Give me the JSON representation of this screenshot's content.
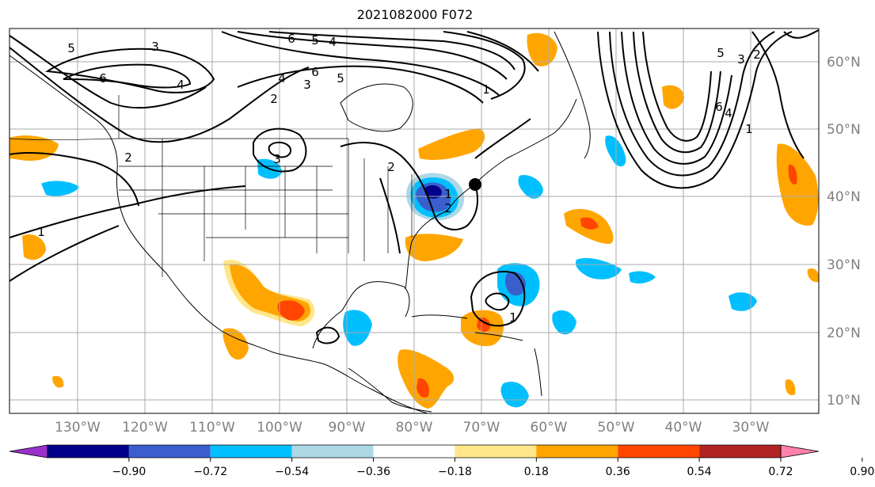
{
  "title": "2021082000 F072",
  "lon_labels": [
    "130°W",
    "120°W",
    "110°W",
    "100°W",
    "90°W",
    "80°W",
    "70°W",
    "60°W",
    "50°W",
    "40°W",
    "30°W"
  ],
  "lat_labels": [
    "60°N",
    "50°N",
    "40°N",
    "30°N",
    "20°N",
    "10°N"
  ],
  "colorbar": {
    "tick_labels": [
      "−0.90",
      "−0.72",
      "−0.54",
      "−0.36",
      "−0.18",
      "0.18",
      "0.36",
      "0.54",
      "0.72",
      "0.90"
    ],
    "colors": [
      "#9932cc",
      "#00008b",
      "#3a5fcd",
      "#00bfff",
      "#add8e6",
      "#ffffff",
      "#ffe68a",
      "#ffa500",
      "#ff4500",
      "#b22222",
      "#ff82ab"
    ]
  },
  "contour_labels": [
    "5",
    "3",
    "6",
    "4",
    "2",
    "1",
    "6",
    "5",
    "4",
    "5",
    "6",
    "4",
    "3",
    "2",
    "1",
    "3",
    "2",
    "1",
    "2",
    "5",
    "3",
    "2",
    "6",
    "4",
    "1",
    "1"
  ],
  "colors": {
    "negative_strong": "#00008b",
    "negative_mid": "#3a5fcd",
    "negative_light": "#00bfff",
    "negative_faint": "#add8e6",
    "positive_faint": "#ffe68a",
    "positive_light": "#ffa500",
    "positive_mid": "#ff4500",
    "positive_strong": "#b22222"
  }
}
